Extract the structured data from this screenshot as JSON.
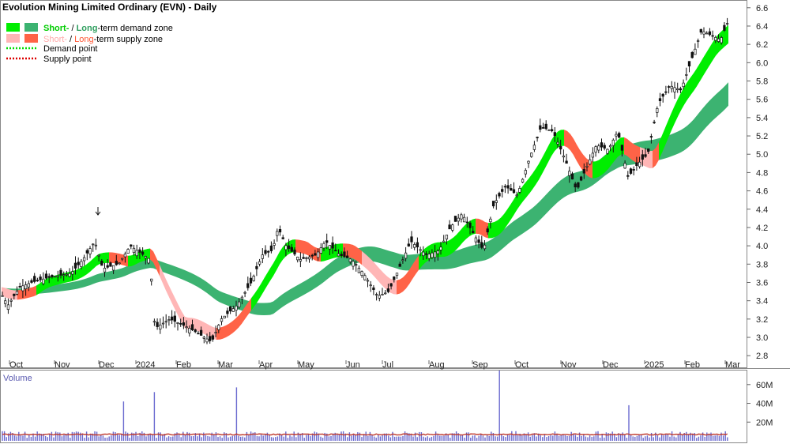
{
  "title": "Evolution Mining Limited Ordinary (EVN) - Daily",
  "legend": {
    "demand_short": "Short-",
    "demand_sep": " / ",
    "demand_long": "Long",
    "demand_rest": "-term demand zone",
    "supply_short": "Short-",
    "supply_sep": " / ",
    "supply_long": "Long",
    "supply_rest": "-term supply zone",
    "demand_point": "Demand point",
    "supply_point": "Supply point"
  },
  "volume_label": "Volume",
  "colors": {
    "short_demand": "#00ee00",
    "long_demand": "#3cb371",
    "short_supply": "#ffb6b6",
    "long_supply": "#ff6347",
    "volume_bar": "#6a6ad0",
    "volume_ma": "#c0392b"
  },
  "chart_data": [
    {
      "type": "candlestick",
      "title": "Evolution Mining Limited Ordinary (EVN) - Daily",
      "x_ticks": [
        "Oct",
        "Nov",
        "Dec",
        "2024",
        "Feb",
        "Mar",
        "Apr",
        "May",
        "Jun",
        "Jul",
        "Aug",
        "Sep",
        "Oct",
        "Nov",
        "Dec",
        "2025",
        "Feb",
        "Mar"
      ],
      "y_ticks": [
        "6.6",
        "6.4",
        "6.2",
        "6.0",
        "5.8",
        "5.6",
        "5.4",
        "5.2",
        "5.0",
        "4.8",
        "4.6",
        "4.4",
        "4.2",
        "4.0",
        "3.8",
        "3.6",
        "3.4",
        "3.2",
        "3.0",
        "2.8"
      ],
      "ylim": [
        2.75,
        6.65
      ],
      "grid": false,
      "legend_position": "top-left",
      "price_path": [
        [
          "Oct",
          3.45
        ],
        [
          "Nov",
          3.65
        ],
        [
          "Dec",
          3.8
        ],
        [
          "2024",
          3.8
        ],
        [
          "Feb",
          3.1
        ],
        [
          "Mar",
          3.05
        ],
        [
          "Apr",
          3.9
        ],
        [
          "May",
          3.85
        ],
        [
          "Jun",
          3.6
        ],
        [
          "Jul",
          3.55
        ],
        [
          "Aug",
          3.95
        ],
        [
          "Sep",
          4.05
        ],
        [
          "Oct",
          4.8
        ],
        [
          "Nov",
          4.75
        ],
        [
          "Dec",
          5.0
        ],
        [
          "2025",
          5.1
        ],
        [
          "Feb",
          6.2
        ],
        [
          "Mar",
          6.45
        ]
      ],
      "series": [
        {
          "name": "Short-term demand zone",
          "color": "#00ee00"
        },
        {
          "name": "Long-term demand zone",
          "color": "#3cb371"
        },
        {
          "name": "Short-term supply zone",
          "color": "#ffb6b6"
        },
        {
          "name": "Long-term supply zone",
          "color": "#ff6347"
        }
      ]
    },
    {
      "type": "bar",
      "title": "Volume",
      "y_ticks": [
        "60M",
        "40M",
        "20M"
      ],
      "ylim": [
        0,
        75
      ],
      "unit": "M",
      "spikes": [
        [
          "Dec",
          42
        ],
        [
          "2024",
          52
        ],
        [
          "Mar",
          57
        ],
        [
          "Sep",
          75
        ],
        [
          "Dec",
          38
        ]
      ],
      "typical_volume": 8
    }
  ]
}
